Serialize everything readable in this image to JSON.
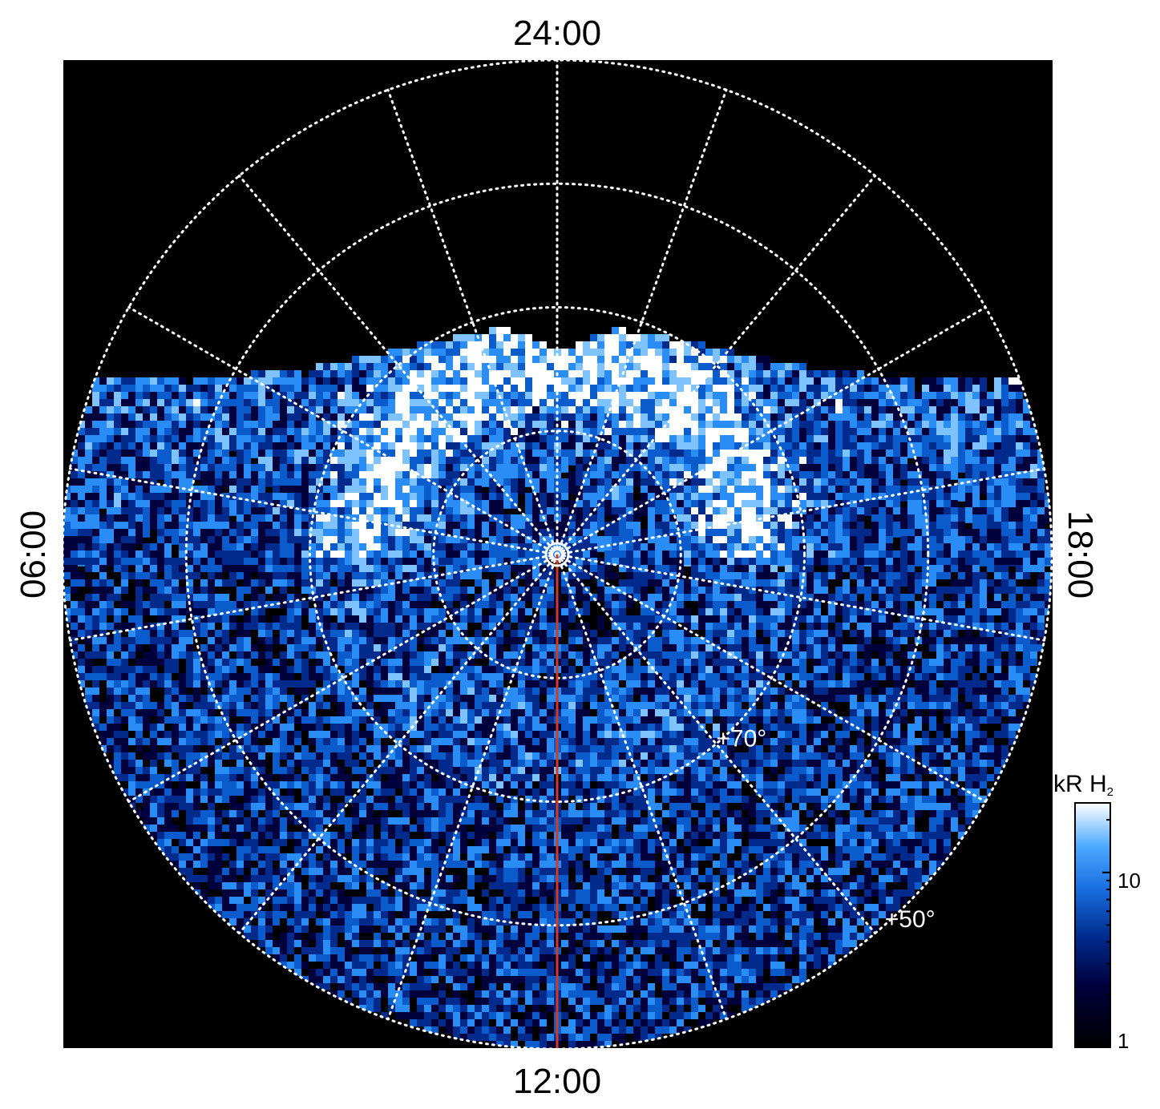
{
  "local_time_labels": {
    "top": "24:00",
    "bottom": "12:00",
    "left": "06:00",
    "right": "18:00"
  },
  "latitude_labels": [
    {
      "text": "+70°",
      "lat": 70
    },
    {
      "text": "+50°",
      "lat": 50
    }
  ],
  "latitude_grid_deg": [
    90,
    80,
    70,
    60,
    50
  ],
  "longitude_grid_step_deg": 20,
  "colorbar": {
    "title_main": "kR H",
    "title_sub": "2",
    "tick_labels": [
      "1",
      "10"
    ],
    "scale": "log",
    "range_kR": [
      1,
      25
    ]
  },
  "colors": {
    "background": "#000000",
    "grid": "#ffffff",
    "meridian_line": "#d63a1a",
    "colormap": [
      "#000000",
      "#00003c",
      "#002a8c",
      "#0a5ccc",
      "#2a8cf5",
      "#7ec2ff",
      "#ffffff"
    ]
  }
}
